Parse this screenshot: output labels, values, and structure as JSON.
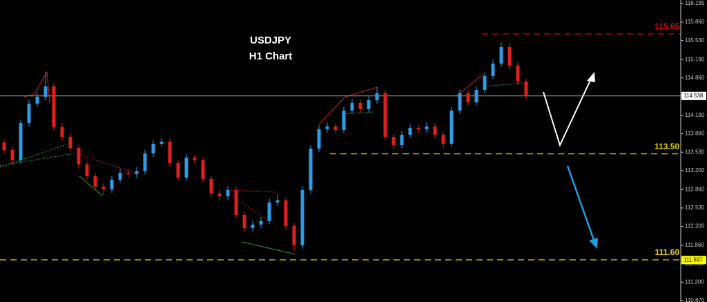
{
  "chart_data": {
    "type": "candlestick",
    "title": "USDJPY",
    "subtitle": "H1 Chart",
    "up_color": "#2f9be6",
    "down_color": "#e02020",
    "ylim": [
      110.845,
      116.257
    ],
    "yticks": [
      {
        "value": 116.195,
        "label": "116.195"
      },
      {
        "value": 115.86,
        "label": "115.860"
      },
      {
        "value": 115.53,
        "label": "115.530"
      },
      {
        "value": 115.19,
        "label": "115.190"
      },
      {
        "value": 114.86,
        "label": "114.860"
      },
      {
        "value": 114.19,
        "label": "114.190"
      },
      {
        "value": 113.86,
        "label": "113.860"
      },
      {
        "value": 113.53,
        "label": "113.530"
      },
      {
        "value": 113.2,
        "label": "113.200"
      },
      {
        "value": 112.86,
        "label": "112.860"
      },
      {
        "value": 112.53,
        "label": "112.530"
      },
      {
        "value": 112.2,
        "label": "112.200"
      },
      {
        "value": 111.86,
        "label": "111.860"
      },
      {
        "value": 111.53,
        "label": "111.530"
      },
      {
        "value": 111.2,
        "label": "111.200"
      },
      {
        "value": 110.87,
        "label": "110.870"
      }
    ],
    "levels": [
      {
        "value": 115.65,
        "color": "#e00000"
      },
      {
        "value": 113.5,
        "label": "113.50",
        "color": "#e6d200"
      },
      {
        "value": 111.6,
        "label": "111.60",
        "color": "#e6d200"
      }
    ],
    "price_tags": [
      {
        "value": 114.538,
        "color": "#ffffff"
      },
      {
        "value": 111.597,
        "color": "#ffff00"
      }
    ],
    "open": [
      113.7,
      113.57,
      113.384,
      114.053,
      114.399,
      114.523,
      114.709,
      113.978,
      113.805,
      113.607,
      113.31,
      113.099,
      112.913,
      112.864,
      113.037,
      113.161,
      113.14,
      113.19,
      113.508,
      113.681,
      113.718,
      113.334,
      113.074,
      113.433,
      113.384,
      113.05,
      112.789,
      112.74,
      112.851,
      112.406,
      112.17,
      112.232,
      112.294,
      112.628,
      112.666,
      112.207,
      111.861,
      112.851,
      113.594,
      113.941,
      113.991,
      113.929,
      114.276,
      114.412,
      114.3,
      114.461,
      114.585,
      113.805,
      113.656,
      113.842,
      113.966,
      113.94,
      113.99,
      113.842,
      113.681,
      114.276,
      114.585,
      114.424,
      114.647,
      114.895,
      115.118,
      115.415,
      115.081,
      114.796
    ],
    "high": [
      113.76,
      113.62,
      114.11,
      114.47,
      114.6,
      114.96,
      114.76,
      114.05,
      113.87,
      113.66,
      113.37,
      113.16,
      112.98,
      113.1,
      113.23,
      113.22,
      113.26,
      113.57,
      113.75,
      113.79,
      113.77,
      113.39,
      113.5,
      113.49,
      113.44,
      113.11,
      112.85,
      112.92,
      112.91,
      112.46,
      112.3,
      112.36,
      112.7,
      112.78,
      112.72,
      112.26,
      112.92,
      113.66,
      114.01,
      114.06,
      114.05,
      114.34,
      114.48,
      114.47,
      114.53,
      114.69,
      114.64,
      113.86,
      113.91,
      114.03,
      114.02,
      114.06,
      114.05,
      113.9,
      114.34,
      114.65,
      114.64,
      114.71,
      114.96,
      115.19,
      115.5,
      115.47,
      115.14,
      114.85
    ],
    "low": [
      113.5,
      113.31,
      113.33,
      113.99,
      114.34,
      114.46,
      113.91,
      113.74,
      113.54,
      113.24,
      113.03,
      112.85,
      112.74,
      112.8,
      112.98,
      113.08,
      113.07,
      113.13,
      113.44,
      113.62,
      113.27,
      113.01,
      113.02,
      113.32,
      112.99,
      112.72,
      112.67,
      112.68,
      112.34,
      112.1,
      112.11,
      112.17,
      112.24,
      112.57,
      112.14,
      111.76,
      111.8,
      112.79,
      113.53,
      113.88,
      113.87,
      113.87,
      114.22,
      114.24,
      114.24,
      114.4,
      113.74,
      113.58,
      113.6,
      113.79,
      113.88,
      113.88,
      113.78,
      113.6,
      113.63,
      114.22,
      114.36,
      114.37,
      114.59,
      114.84,
      115.06,
      115.01,
      114.73,
      114.48
    ],
    "close": [
      113.57,
      113.384,
      114.053,
      114.399,
      114.523,
      114.709,
      113.978,
      113.805,
      113.607,
      113.31,
      113.099,
      112.913,
      112.864,
      113.037,
      113.161,
      113.14,
      113.19,
      113.508,
      113.681,
      113.718,
      113.334,
      113.074,
      113.433,
      113.384,
      113.05,
      112.789,
      112.74,
      112.851,
      112.406,
      112.17,
      112.232,
      112.294,
      112.628,
      112.666,
      112.207,
      111.861,
      112.851,
      113.594,
      113.941,
      113.991,
      113.929,
      114.276,
      114.412,
      114.3,
      114.461,
      114.585,
      113.805,
      113.656,
      113.842,
      113.966,
      113.94,
      113.99,
      113.842,
      113.681,
      114.276,
      114.585,
      114.424,
      114.647,
      114.895,
      115.118,
      115.415,
      115.081,
      114.796,
      114.538
    ]
  }
}
